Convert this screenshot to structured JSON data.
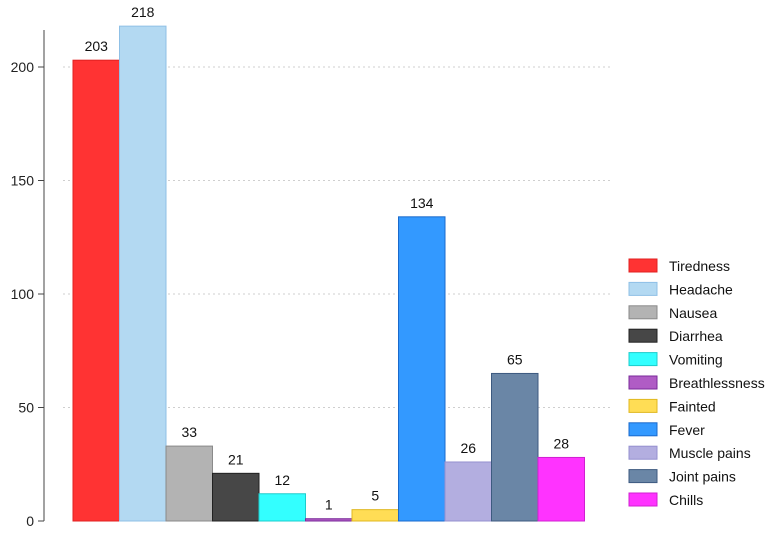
{
  "chart_data": {
    "type": "bar",
    "title": "",
    "xlabel": "",
    "ylabel": "",
    "ylim": [
      0,
      225
    ],
    "yticks": [
      0,
      50,
      100,
      150,
      200
    ],
    "grid": "horizontal-dotted",
    "legend_position": "right",
    "categories": [
      "Tiredness",
      "Headache",
      "Nausea",
      "Diarrhea",
      "Vomiting",
      "Breathlessness",
      "Fainted",
      "Fever",
      "Muscle pains",
      "Joint pains",
      "Chills"
    ],
    "values": [
      203,
      218,
      33,
      21,
      12,
      1,
      5,
      134,
      26,
      65,
      28
    ],
    "colors": [
      "#FF3333",
      "#B3D9F2",
      "#B3B3B3",
      "#474747",
      "#33FFFF",
      "#B05CC5",
      "#FFDD55",
      "#3399FF",
      "#B3AEE0",
      "#6A86A6",
      "#FF33FF"
    ],
    "borders": [
      "#E02020",
      "#8FC0E6",
      "#8A8A8A",
      "#222222",
      "#1CCCCC",
      "#7A2A9A",
      "#E0B820",
      "#1A6ACC",
      "#9590CF",
      "#3D5A80",
      "#D020D0"
    ]
  }
}
